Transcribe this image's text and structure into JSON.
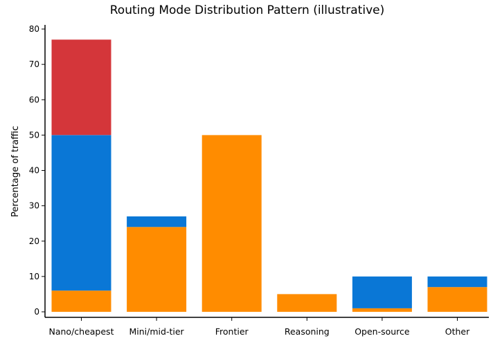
{
  "chart_data": {
    "type": "bar",
    "stacked": true,
    "title": "Routing Mode Distribution Pattern (illustrative)",
    "xlabel": "",
    "ylabel": "Percentage of traffic",
    "ylim": [
      0,
      80
    ],
    "yticks": [
      0,
      10,
      20,
      30,
      40,
      50,
      60,
      70,
      80
    ],
    "grid": false,
    "legend": false,
    "categories": [
      "Nano/cheapest",
      "Mini/mid-tier",
      "Frontier",
      "Reasoning",
      "Open-source",
      "Other"
    ],
    "series": [
      {
        "color": "#ff8c00",
        "values": [
          6,
          24,
          50,
          5,
          1,
          7
        ]
      },
      {
        "color": "#0a77d6",
        "values": [
          44,
          3,
          0,
          0,
          9,
          3
        ]
      },
      {
        "color": "#d4363a",
        "values": [
          27,
          0,
          0,
          0,
          0,
          0
        ]
      }
    ]
  }
}
